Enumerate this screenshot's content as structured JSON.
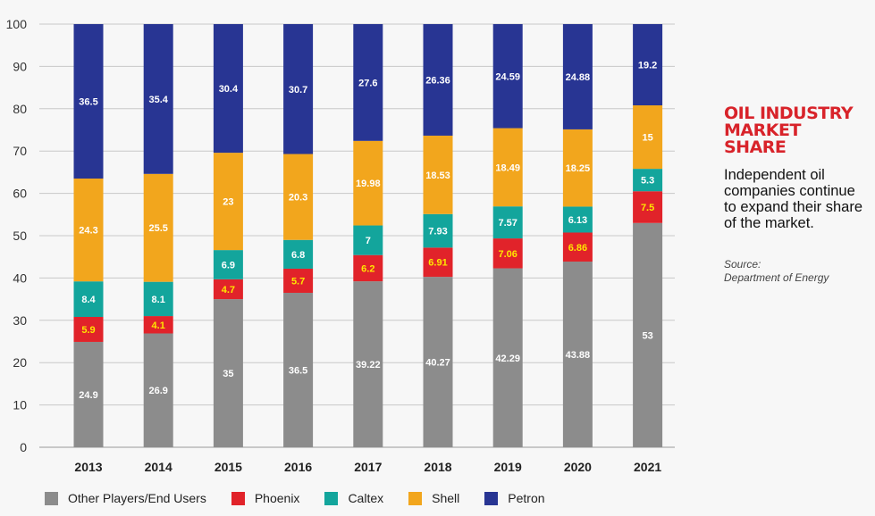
{
  "chart_data": {
    "type": "bar",
    "stacked": true,
    "categories": [
      "2013",
      "2014",
      "2015",
      "2016",
      "2017",
      "2018",
      "2019",
      "2020",
      "2021"
    ],
    "ylim": [
      0,
      100
    ],
    "yticks": [
      0,
      10,
      20,
      30,
      40,
      50,
      60,
      70,
      80,
      90,
      100
    ],
    "grid": true,
    "legend_position": "bottom",
    "series": [
      {
        "name": "Other Players/End Users",
        "color": "#8c8c8c",
        "label_color": "#ffffff",
        "values": [
          24.9,
          26.9,
          35,
          36.5,
          39.22,
          40.27,
          42.29,
          43.88,
          53
        ],
        "labels": [
          "24.9",
          "26.9",
          "35",
          "36.5",
          "39.22",
          "40.27",
          "42.29",
          "43.88",
          "53"
        ]
      },
      {
        "name": "Phoenix",
        "color": "#e1232a",
        "label_color": "#ffe600",
        "values": [
          5.9,
          4.1,
          4.7,
          5.7,
          6.2,
          6.91,
          7.06,
          6.86,
          7.5
        ],
        "labels": [
          "5.9",
          "4.1",
          "4.7",
          "5.7",
          "6.2",
          "6.91",
          "7.06",
          "6.86",
          "7.5"
        ]
      },
      {
        "name": "Caltex",
        "color": "#13a59c",
        "label_color": "#ffffff",
        "values": [
          8.4,
          8.1,
          6.9,
          6.8,
          7,
          7.93,
          7.57,
          6.13,
          5.3
        ],
        "labels": [
          "8.4",
          "8.1",
          "6.9",
          "6.8",
          "7",
          "7.93",
          "7.57",
          "6.13",
          "5.3"
        ]
      },
      {
        "name": "Shell",
        "color": "#f2a61d",
        "label_color": "#ffffff",
        "values": [
          24.3,
          25.5,
          23,
          20.3,
          19.98,
          18.53,
          18.49,
          18.25,
          15
        ],
        "labels": [
          "24.3",
          "25.5",
          "23",
          "20.3",
          "19.98",
          "18.53",
          "18.49",
          "18.25",
          "15"
        ]
      },
      {
        "name": "Petron",
        "color": "#283593",
        "label_color": "#ffffff",
        "values": [
          36.5,
          35.4,
          30.4,
          30.7,
          27.6,
          26.36,
          24.59,
          24.88,
          19.2
        ],
        "labels": [
          "36.5",
          "35.4",
          "30.4",
          "30.7",
          "27.6",
          "26.36",
          "24.59",
          "24.88",
          "19.2"
        ]
      }
    ]
  },
  "panel": {
    "title": "OIL INDUSTRY\nMARKET\nSHARE",
    "description": "Independent oil companies continue to expand their share of the market.",
    "source_label": "Source:",
    "source_name": "Department of Energy"
  }
}
